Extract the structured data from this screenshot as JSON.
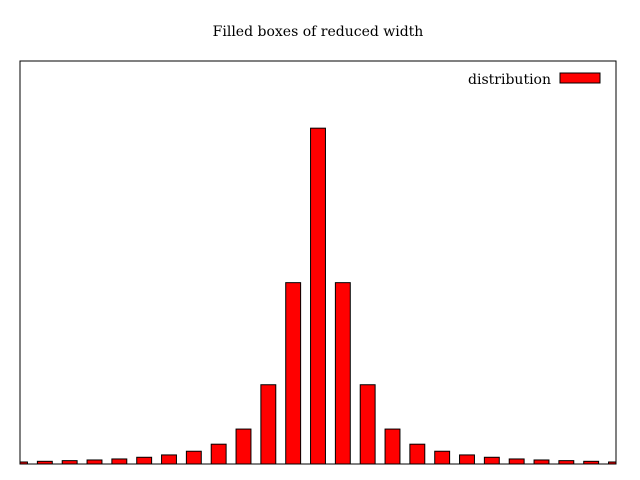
{
  "chart_data": {
    "type": "bar",
    "title": "Filled boxes of reduced width",
    "xlabel": "",
    "ylabel": "",
    "legend": {
      "entries": [
        "distribution"
      ],
      "placement": "top-right"
    },
    "grid": false,
    "tick_labels_visible": false,
    "x": [
      -12,
      -11,
      -10,
      -9,
      -8,
      -7,
      -6,
      -5,
      -4,
      -3,
      -2,
      -1,
      0,
      1,
      2,
      3,
      4,
      5,
      6,
      7,
      8,
      9,
      10,
      11,
      12
    ],
    "values": [
      0.006,
      0.008,
      0.01,
      0.012,
      0.015,
      0.02,
      0.027,
      0.038,
      0.059,
      0.104,
      0.236,
      0.54,
      1.0,
      0.54,
      0.236,
      0.104,
      0.059,
      0.038,
      0.027,
      0.02,
      0.015,
      0.012,
      0.01,
      0.008,
      0.006
    ],
    "series": [
      {
        "name": "distribution",
        "color": "#ff0000",
        "stroke": "#000000"
      }
    ],
    "xlim": [
      -12,
      12
    ],
    "ylim": [
      0,
      1.2
    ]
  }
}
